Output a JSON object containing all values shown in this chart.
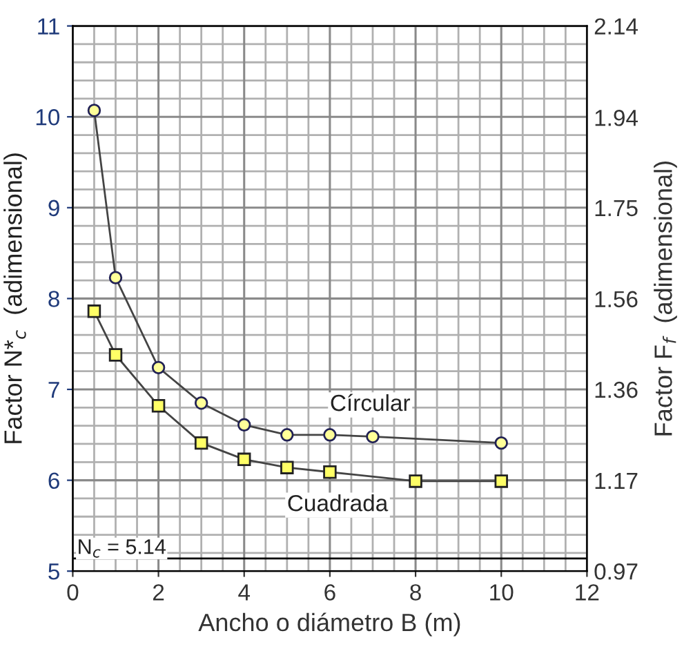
{
  "chart_data": {
    "type": "line",
    "xlabel": "Ancho o diámetro B (m)",
    "ylabel": "Factor N*$_{c}$  (adimensional)",
    "y2label": "Factor F$_{f}$  (adimensional)",
    "xlim": [
      0,
      12
    ],
    "xticks": [
      0,
      2,
      4,
      6,
      8,
      10,
      12
    ],
    "ylim": [
      5,
      11
    ],
    "yticks": [
      5,
      6,
      7,
      8,
      9,
      10,
      11
    ],
    "y2lim": [
      0.973,
      2.14
    ],
    "y2ticks": [
      {
        "value": 0.973,
        "label": "0.97"
      },
      {
        "value": 1.167,
        "label": "1.17"
      },
      {
        "value": 1.362,
        "label": "1.36"
      },
      {
        "value": 1.556,
        "label": "1.56"
      },
      {
        "value": 1.751,
        "label": "1.75"
      },
      {
        "value": 1.944,
        "label": "1.94"
      },
      {
        "value": 2.14,
        "label": "2.14"
      }
    ],
    "grid": true,
    "line_style": "solid",
    "ref_lines": [
      {
        "axis": "y",
        "value": 5.14,
        "label": "N$_{c}$ = 5.14",
        "color": "#000000"
      }
    ],
    "series": [
      {
        "name": "Círcular",
        "color": "#ffff99",
        "marker": "circle",
        "x": [
          0.5,
          1,
          2,
          3,
          4,
          5,
          6,
          7,
          10
        ],
        "values": [
          10.07,
          8.23,
          7.24,
          6.85,
          6.61,
          6.5,
          6.5,
          6.48,
          6.41
        ]
      },
      {
        "name": "Cuadrada",
        "color": "#ffff66",
        "marker": "square",
        "x": [
          0.5,
          1,
          2,
          3,
          4,
          5,
          6,
          8,
          10
        ],
        "values": [
          7.86,
          7.38,
          6.82,
          6.41,
          6.23,
          6.14,
          6.09,
          5.99,
          5.99
        ]
      }
    ]
  }
}
